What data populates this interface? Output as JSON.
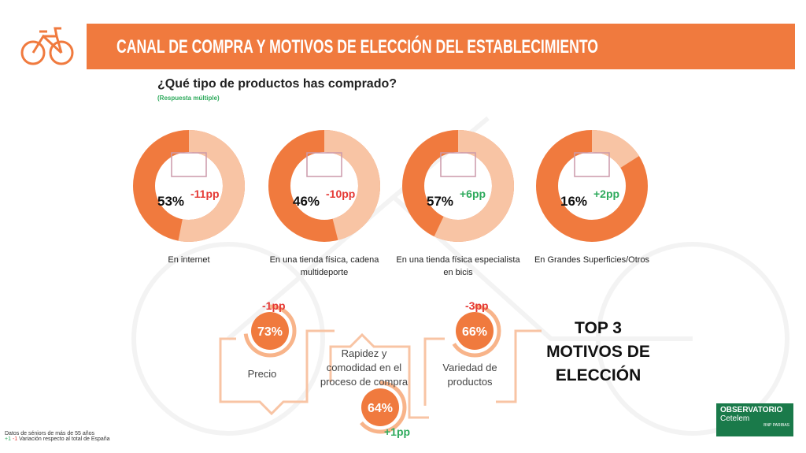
{
  "header": {
    "title": "CANAL DE COMPRA Y MOTIVOS DE ELECCIÓN DEL ESTABLECIMIENTO"
  },
  "question": {
    "title": "¿Qué tipo de productos has comprado?",
    "note": "(Respuesta múltiple)"
  },
  "channels": [
    {
      "label": "En internet",
      "value": 53,
      "value_label": "53%",
      "change": "-11pp",
      "change_color": "#e53935"
    },
    {
      "label": "En una tienda física, cadena multideporte",
      "value": 46,
      "value_label": "46%",
      "change": "-10pp",
      "change_color": "#e53935"
    },
    {
      "label": "En una tienda física especialista en bicis",
      "value": 57,
      "value_label": "57%",
      "change": "+6pp",
      "change_color": "#2eaa5c"
    },
    {
      "label": "En Grandes Superficies/Otros",
      "value": 16,
      "value_label": "16%",
      "change": "+2pp",
      "change_color": "#2eaa5c"
    }
  ],
  "motives": {
    "title_lines": [
      "TOP 3",
      "MOTIVOS DE",
      "ELECCIÓN"
    ],
    "items": [
      {
        "label": "Precio",
        "value": 73,
        "value_label": "73%",
        "change": "-1pp",
        "change_color": "#e53935"
      },
      {
        "label": "Rapidez y comodidad en el proceso de compra",
        "value": 64,
        "value_label": "64%",
        "change": "+1pp",
        "change_color": "#2eaa5c"
      },
      {
        "label": "Variedad de productos",
        "value": 66,
        "value_label": "66%",
        "change": "-3pp",
        "change_color": "#e53935"
      }
    ]
  },
  "footnote": {
    "line1": "Datos de séniors de más de 55 años",
    "legend_pos": "+1",
    "legend_neg": "-1",
    "line2": "Variación respecto al total de España"
  },
  "logo": {
    "name": "OBSERVATORIO",
    "brand": "Cetelem",
    "partner": "BNP PARIBAS"
  }
}
